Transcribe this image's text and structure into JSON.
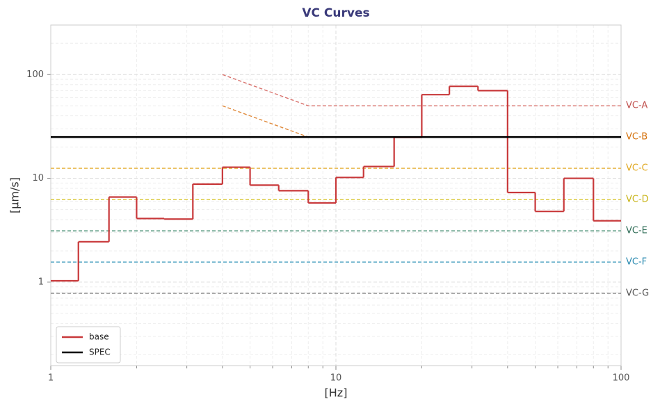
{
  "chart_data": {
    "type": "line",
    "title": "VC Curves",
    "x_label": "[Hz]",
    "y_label": "[μm/s]",
    "log_x": true,
    "log_y": true,
    "grid": true,
    "xlim": [
      1,
      100
    ],
    "ylim": [
      0.157,
      300
    ],
    "xticks": [
      1,
      10,
      100
    ],
    "yticks": [
      1,
      10,
      100
    ],
    "legend_position": "lower left",
    "series": [
      {
        "name": "base",
        "color": "#c8383a",
        "step": true,
        "legend": true,
        "x": [
          1,
          1.25,
          1.6,
          2,
          2.5,
          3.15,
          4,
          5,
          6.3,
          8,
          10,
          12.5,
          16,
          20,
          25,
          31.5,
          40,
          50,
          63,
          80
        ],
        "values": [
          1.03,
          2.45,
          6.6,
          4.1,
          4.05,
          8.8,
          12.8,
          8.6,
          7.6,
          5.8,
          10.2,
          13.0,
          24.8,
          64,
          77,
          70,
          7.3,
          4.8,
          10,
          3.9
        ]
      },
      {
        "name": "SPEC",
        "color": "#000000",
        "legend": true,
        "x": [
          1,
          100
        ],
        "values": [
          25,
          25
        ]
      },
      {
        "name": "VC-A",
        "color": "#d9736e",
        "label_color": "#c0504d",
        "dashed": true,
        "x": [
          4,
          8,
          100
        ],
        "values": [
          100,
          50,
          50
        ]
      },
      {
        "name": "VC-B",
        "color": "#e08a3c",
        "label_color": "#d4700a",
        "dashed": true,
        "x": [
          4,
          8,
          100
        ],
        "values": [
          50,
          25,
          25
        ]
      },
      {
        "name": "VC-C",
        "color": "#e8b84a",
        "label_color": "#e0a820",
        "dashed": true,
        "x": [
          1,
          100
        ],
        "values": [
          12.5,
          12.5
        ]
      },
      {
        "name": "VC-D",
        "color": "#d8c530",
        "label_color": "#c8b418",
        "dashed": true,
        "x": [
          1,
          100
        ],
        "values": [
          6.25,
          6.25
        ]
      },
      {
        "name": "VC-E",
        "color": "#5a9a80",
        "label_color": "#2d6b55",
        "dashed": true,
        "x": [
          1,
          100
        ],
        "values": [
          3.12,
          3.12
        ]
      },
      {
        "name": "VC-F",
        "color": "#4aa0c0",
        "label_color": "#2a8ab0",
        "dashed": true,
        "x": [
          1,
          100
        ],
        "values": [
          1.56,
          1.56
        ]
      },
      {
        "name": "VC-G",
        "color": "#8a8a8a",
        "label_color": "#555555",
        "dashed": true,
        "x": [
          1,
          100
        ],
        "values": [
          0.78,
          0.78
        ]
      }
    ]
  }
}
